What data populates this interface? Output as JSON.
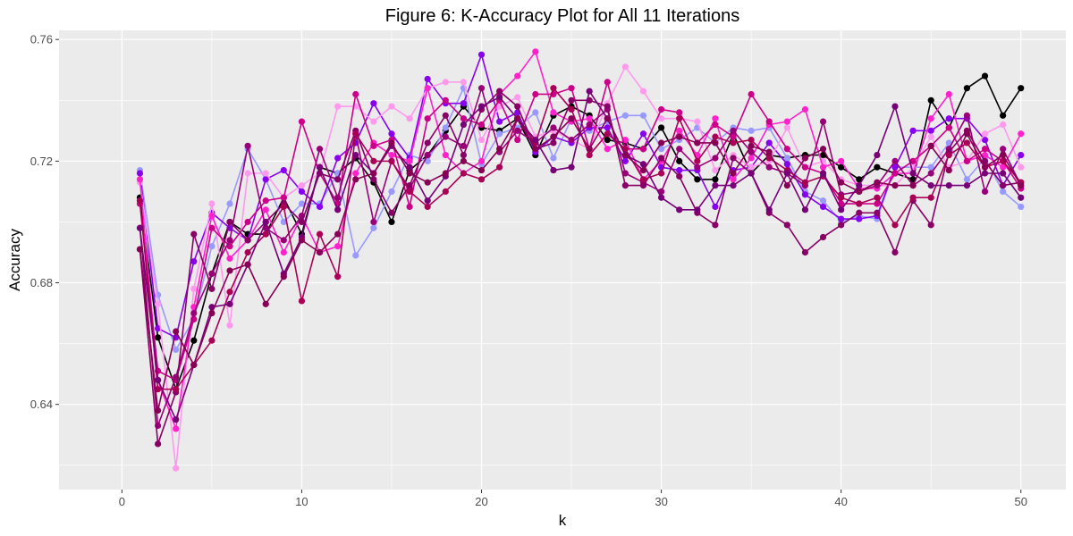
{
  "chart_data": {
    "type": "line",
    "title": "Figure 6: K-Accuracy Plot for All 11 Iterations",
    "xlabel": "k",
    "ylabel": "Accuracy",
    "xlim": [
      -3.5,
      52.5
    ],
    "ylim": [
      0.612,
      0.763
    ],
    "xticks": [
      0,
      10,
      20,
      30,
      40,
      50
    ],
    "yticks": [
      0.64,
      0.68,
      0.72,
      0.76
    ],
    "ytick_labels": [
      "0.64",
      "0.68",
      "0.72",
      "0.76"
    ],
    "grid": true,
    "legend": "none",
    "panel_background": "#ebebeb",
    "grid_color": "#ffffff",
    "x": [
      1,
      2,
      3,
      4,
      5,
      6,
      7,
      8,
      9,
      10,
      11,
      12,
      13,
      14,
      15,
      16,
      17,
      18,
      19,
      20,
      21,
      22,
      23,
      24,
      25,
      26,
      27,
      28,
      29,
      30,
      31,
      32,
      33,
      34,
      35,
      36,
      37,
      38,
      39,
      40,
      41,
      42,
      43,
      44,
      45,
      46,
      47,
      48,
      49,
      50
    ],
    "series": [
      {
        "color": "#000000",
        "values": [
          0.708,
          0.662,
          0.645,
          0.661,
          0.683,
          0.7,
          0.696,
          0.696,
          0.708,
          0.696,
          0.718,
          0.716,
          0.721,
          0.713,
          0.7,
          0.717,
          0.722,
          0.73,
          0.738,
          0.731,
          0.73,
          0.734,
          0.722,
          0.735,
          0.738,
          0.735,
          0.727,
          0.726,
          0.724,
          0.731,
          0.72,
          0.714,
          0.714,
          0.729,
          0.716,
          0.722,
          0.721,
          0.722,
          0.722,
          0.718,
          0.714,
          0.718,
          0.716,
          0.714,
          0.74,
          0.731,
          0.744,
          0.748,
          0.735,
          0.744
        ]
      },
      {
        "color": "#9999ff",
        "values": [
          0.717,
          0.676,
          0.658,
          0.668,
          0.692,
          0.706,
          0.724,
          0.714,
          0.7,
          0.706,
          0.706,
          0.716,
          0.689,
          0.698,
          0.71,
          0.722,
          0.72,
          0.731,
          0.744,
          0.719,
          0.729,
          0.731,
          0.736,
          0.721,
          0.734,
          0.73,
          0.733,
          0.735,
          0.735,
          0.724,
          0.727,
          0.731,
          0.726,
          0.731,
          0.73,
          0.731,
          0.721,
          0.71,
          0.707,
          0.7,
          0.702,
          0.701,
          0.718,
          0.718,
          0.718,
          0.726,
          0.714,
          0.721,
          0.71,
          0.705
        ]
      },
      {
        "color": "#8800ee",
        "values": [
          0.716,
          0.665,
          0.662,
          0.687,
          0.703,
          0.698,
          0.694,
          0.714,
          0.717,
          0.71,
          0.705,
          0.721,
          0.726,
          0.739,
          0.729,
          0.721,
          0.747,
          0.739,
          0.739,
          0.755,
          0.733,
          0.736,
          0.723,
          0.728,
          0.726,
          0.731,
          0.731,
          0.72,
          0.729,
          0.718,
          0.717,
          0.717,
          0.705,
          0.717,
          0.718,
          0.726,
          0.719,
          0.709,
          0.705,
          0.701,
          0.701,
          0.702,
          0.718,
          0.73,
          0.73,
          0.734,
          0.734,
          0.727,
          0.712,
          0.722
        ]
      },
      {
        "color": "#ff99ee",
        "values": [
          0.713,
          0.673,
          0.619,
          0.678,
          0.706,
          0.666,
          0.716,
          0.716,
          0.708,
          0.712,
          0.716,
          0.738,
          0.738,
          0.733,
          0.738,
          0.734,
          0.744,
          0.746,
          0.746,
          0.727,
          0.738,
          0.741,
          0.728,
          0.73,
          0.727,
          0.724,
          0.739,
          0.751,
          0.743,
          0.734,
          0.734,
          0.733,
          0.717,
          0.722,
          0.718,
          0.72,
          0.731,
          0.718,
          0.72,
          0.714,
          0.712,
          0.712,
          0.712,
          0.718,
          0.728,
          0.718,
          0.72,
          0.729,
          0.732,
          0.718
        ]
      },
      {
        "color": "#ff22cc",
        "values": [
          0.714,
          0.648,
          0.632,
          0.672,
          0.702,
          0.688,
          0.694,
          0.704,
          0.69,
          0.702,
          0.69,
          0.692,
          0.716,
          0.726,
          0.722,
          0.72,
          0.744,
          0.722,
          0.716,
          0.72,
          0.742,
          0.748,
          0.756,
          0.736,
          0.733,
          0.734,
          0.724,
          0.727,
          0.714,
          0.72,
          0.73,
          0.722,
          0.734,
          0.714,
          0.721,
          0.732,
          0.733,
          0.737,
          0.718,
          0.72,
          0.711,
          0.711,
          0.716,
          0.716,
          0.734,
          0.742,
          0.72,
          0.722,
          0.718,
          0.729
        ]
      },
      {
        "color": "#cc0088",
        "values": [
          0.706,
          0.651,
          0.648,
          0.668,
          0.698,
          0.692,
          0.7,
          0.707,
          0.708,
          0.733,
          0.716,
          0.706,
          0.742,
          0.725,
          0.727,
          0.705,
          0.734,
          0.74,
          0.734,
          0.732,
          0.74,
          0.727,
          0.742,
          0.742,
          0.744,
          0.724,
          0.746,
          0.724,
          0.724,
          0.737,
          0.736,
          0.726,
          0.732,
          0.728,
          0.742,
          0.733,
          0.724,
          0.718,
          0.716,
          0.706,
          0.706,
          0.706,
          0.716,
          0.72,
          0.725,
          0.731,
          0.72,
          0.724,
          0.72,
          0.711
        ]
      },
      {
        "color": "#990077",
        "values": [
          0.698,
          0.633,
          0.649,
          0.67,
          0.683,
          0.694,
          0.725,
          0.698,
          0.694,
          0.702,
          0.724,
          0.708,
          0.729,
          0.7,
          0.72,
          0.711,
          0.722,
          0.728,
          0.725,
          0.744,
          0.723,
          0.73,
          0.726,
          0.731,
          0.727,
          0.732,
          0.737,
          0.716,
          0.713,
          0.71,
          0.724,
          0.718,
          0.721,
          0.73,
          0.723,
          0.718,
          0.716,
          0.712,
          0.733,
          0.709,
          0.71,
          0.712,
          0.72,
          0.712,
          0.716,
          0.724,
          0.735,
          0.71,
          0.724,
          0.712
        ]
      },
      {
        "color": "#880066",
        "values": [
          0.691,
          0.627,
          0.644,
          0.696,
          0.678,
          0.7,
          0.694,
          0.7,
          0.706,
          0.7,
          0.716,
          0.714,
          0.73,
          0.714,
          0.703,
          0.712,
          0.726,
          0.735,
          0.722,
          0.737,
          0.743,
          0.738,
          0.724,
          0.726,
          0.74,
          0.74,
          0.738,
          0.712,
          0.712,
          0.721,
          0.715,
          0.703,
          0.699,
          0.721,
          0.716,
          0.703,
          0.699,
          0.69,
          0.695,
          0.699,
          0.703,
          0.703,
          0.69,
          0.707,
          0.699,
          0.723,
          0.73,
          0.72,
          0.712,
          0.713
        ]
      },
      {
        "color": "#aa0055",
        "values": [
          0.707,
          0.645,
          0.645,
          0.653,
          0.661,
          0.677,
          0.69,
          0.696,
          0.705,
          0.674,
          0.696,
          0.682,
          0.729,
          0.72,
          0.72,
          0.71,
          0.705,
          0.71,
          0.716,
          0.714,
          0.718,
          0.734,
          0.726,
          0.744,
          0.737,
          0.722,
          0.729,
          0.724,
          0.714,
          0.716,
          0.734,
          0.72,
          0.728,
          0.726,
          0.727,
          0.721,
          0.717,
          0.713,
          0.715,
          0.708,
          0.706,
          0.708,
          0.699,
          0.708,
          0.708,
          0.722,
          0.726,
          0.718,
          0.72,
          0.713
        ]
      },
      {
        "color": "#770077",
        "values": [
          0.698,
          0.648,
          0.635,
          0.653,
          0.672,
          0.673,
          0.686,
          0.7,
          0.683,
          0.695,
          0.718,
          0.704,
          0.722,
          0.716,
          0.725,
          0.718,
          0.707,
          0.715,
          0.732,
          0.738,
          0.741,
          0.734,
          0.727,
          0.717,
          0.718,
          0.743,
          0.734,
          0.722,
          0.719,
          0.708,
          0.704,
          0.704,
          0.712,
          0.712,
          0.716,
          0.704,
          0.716,
          0.704,
          0.716,
          0.704,
          0.712,
          0.722,
          0.738,
          0.716,
          0.712,
          0.712,
          0.712,
          0.716,
          0.716,
          0.708
        ]
      },
      {
        "color": "#880055",
        "values": [
          0.691,
          0.638,
          0.664,
          0.653,
          0.67,
          0.684,
          0.686,
          0.673,
          0.682,
          0.694,
          0.69,
          0.696,
          0.714,
          0.716,
          0.726,
          0.716,
          0.713,
          0.716,
          0.72,
          0.717,
          0.724,
          0.734,
          0.724,
          0.728,
          0.734,
          0.724,
          0.734,
          0.722,
          0.717,
          0.726,
          0.728,
          0.726,
          0.726,
          0.716,
          0.725,
          0.723,
          0.712,
          0.721,
          0.724,
          0.713,
          0.71,
          0.713,
          0.712,
          0.712,
          0.725,
          0.717,
          0.729,
          0.718,
          0.722,
          0.712
        ]
      }
    ]
  }
}
